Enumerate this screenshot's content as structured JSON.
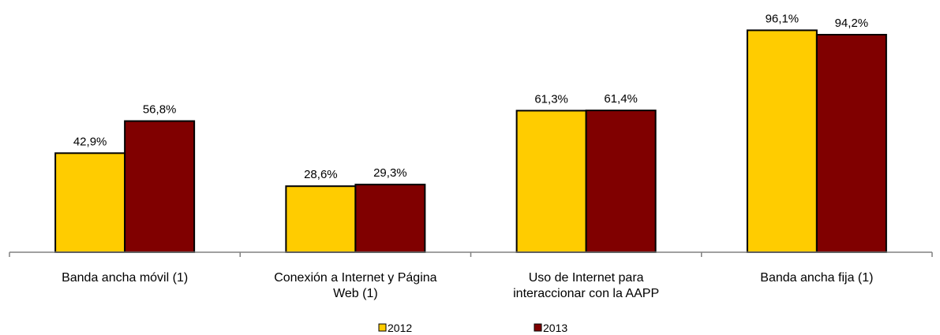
{
  "chart_data": {
    "type": "bar",
    "categories": [
      "Banda ancha móvil (1)",
      "Conexión a Internet y Página Web (1)",
      "Uso de Internet para interaccionar con la AAPP",
      "Banda ancha fija (1)"
    ],
    "series": [
      {
        "name": "2012",
        "color": "#FFCC00",
        "values": [
          42.9,
          28.6,
          61.3,
          96.1
        ],
        "value_labels": [
          "42,9%",
          "28,6%",
          "61,3%",
          "96,1%"
        ]
      },
      {
        "name": "2013",
        "color": "#800000",
        "values": [
          56.8,
          29.3,
          61.4,
          94.2
        ],
        "value_labels": [
          "56,8%",
          "29,3%",
          "61,4%",
          "94,2%"
        ]
      }
    ],
    "ylim": [
      0,
      100
    ]
  }
}
